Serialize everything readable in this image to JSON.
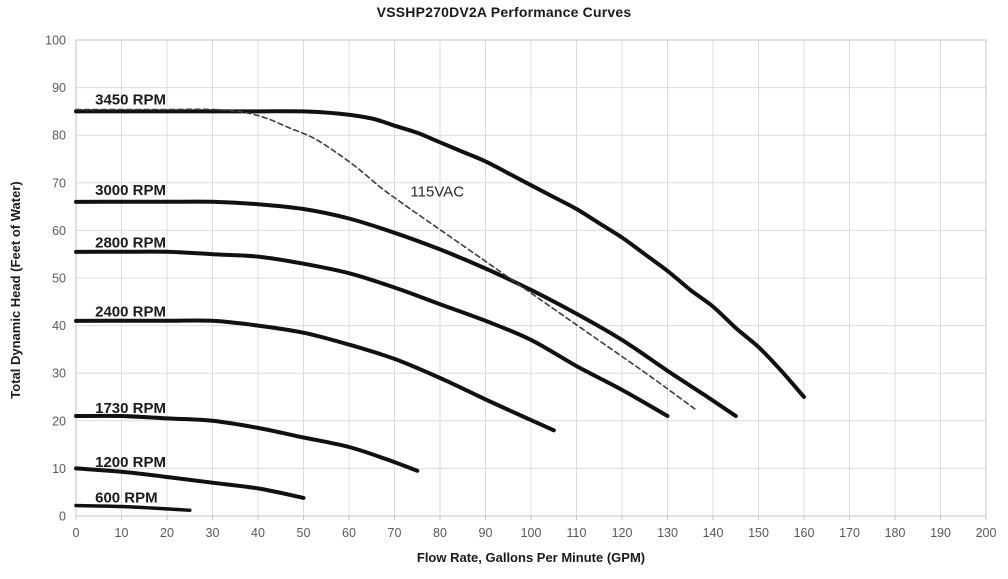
{
  "title": "VSSHP270DV2A Performance Curves",
  "colors": {
    "background": "#ffffff",
    "curve": "#111111",
    "dashed_curve": "#3d3d3d",
    "gridline": "#dcdcdc",
    "plot_border": "#c3c3c3",
    "tick_label": "#595959",
    "title_text": "#1a1a1a"
  },
  "chart_data": {
    "type": "line",
    "title": "VSSHP270DV2A Performance Curves",
    "xlabel": "Flow Rate, Gallons Per Minute (GPM)",
    "ylabel": "Total Dynamic Head (Feet of Water)",
    "xlim": [
      0,
      200
    ],
    "ylim": [
      0,
      100
    ],
    "xtick_step": 10,
    "ytick_step": 10,
    "grid": true,
    "legend_position": "inline-labels",
    "x_units": "GPM",
    "y_units": "Feet of Water",
    "series": [
      {
        "name": "3450 RPM",
        "line": "solid",
        "width": 4,
        "label_text": "3450 RPM",
        "label_x": 4.2,
        "label_y": 87.5,
        "label_bold": true,
        "points": [
          [
            0,
            85
          ],
          [
            10,
            85
          ],
          [
            20,
            85
          ],
          [
            30,
            85
          ],
          [
            40,
            85
          ],
          [
            50,
            85
          ],
          [
            58,
            84.5
          ],
          [
            65,
            83.5
          ],
          [
            70,
            82
          ],
          [
            75,
            80.5
          ],
          [
            80,
            78.5
          ],
          [
            85,
            76.5
          ],
          [
            90,
            74.5
          ],
          [
            95,
            72
          ],
          [
            100,
            69.5
          ],
          [
            105,
            67
          ],
          [
            110,
            64.5
          ],
          [
            115,
            61.5
          ],
          [
            120,
            58.5
          ],
          [
            125,
            55
          ],
          [
            130,
            51.5
          ],
          [
            135,
            47.5
          ],
          [
            140,
            44
          ],
          [
            145,
            39.5
          ],
          [
            150,
            35.5
          ],
          [
            155,
            30.5
          ],
          [
            160,
            25
          ]
        ]
      },
      {
        "name": "3000 RPM",
        "line": "solid",
        "width": 4,
        "label_text": "3000 RPM",
        "label_x": 4.2,
        "label_y": 68.5,
        "label_bold": true,
        "points": [
          [
            0,
            66
          ],
          [
            10,
            66
          ],
          [
            20,
            66
          ],
          [
            30,
            66
          ],
          [
            40,
            65.5
          ],
          [
            50,
            64.5
          ],
          [
            60,
            62.5
          ],
          [
            70,
            59.5
          ],
          [
            80,
            56
          ],
          [
            90,
            52
          ],
          [
            100,
            47.5
          ],
          [
            110,
            42.5
          ],
          [
            120,
            37
          ],
          [
            130,
            30.5
          ],
          [
            138,
            25.5
          ],
          [
            145,
            21
          ]
        ]
      },
      {
        "name": "2800 RPM",
        "line": "solid",
        "width": 4,
        "label_text": "2800 RPM",
        "label_x": 4.2,
        "label_y": 57.5,
        "label_bold": true,
        "points": [
          [
            0,
            55.5
          ],
          [
            10,
            55.5
          ],
          [
            20,
            55.5
          ],
          [
            30,
            55
          ],
          [
            40,
            54.5
          ],
          [
            50,
            53
          ],
          [
            60,
            51
          ],
          [
            70,
            48
          ],
          [
            80,
            44.5
          ],
          [
            90,
            41
          ],
          [
            100,
            37
          ],
          [
            110,
            31.5
          ],
          [
            120,
            26.5
          ],
          [
            130,
            21
          ]
        ]
      },
      {
        "name": "2400 RPM",
        "line": "solid",
        "width": 4,
        "label_text": "2400 RPM",
        "label_x": 4.2,
        "label_y": 43,
        "label_bold": true,
        "points": [
          [
            0,
            41
          ],
          [
            10,
            41
          ],
          [
            20,
            41
          ],
          [
            30,
            41
          ],
          [
            40,
            40
          ],
          [
            50,
            38.5
          ],
          [
            60,
            36
          ],
          [
            70,
            33
          ],
          [
            80,
            29
          ],
          [
            90,
            24.5
          ],
          [
            98,
            21
          ],
          [
            105,
            18
          ]
        ]
      },
      {
        "name": "1730 RPM",
        "line": "solid",
        "width": 4,
        "label_text": "1730 RPM",
        "label_x": 4.2,
        "label_y": 22.7,
        "label_bold": true,
        "points": [
          [
            0,
            21
          ],
          [
            10,
            21
          ],
          [
            20,
            20.5
          ],
          [
            30,
            20
          ],
          [
            40,
            18.5
          ],
          [
            50,
            16.5
          ],
          [
            60,
            14.5
          ],
          [
            68,
            12
          ],
          [
            75,
            9.5
          ]
        ]
      },
      {
        "name": "1200 RPM",
        "line": "solid",
        "width": 4,
        "label_text": "1200 RPM",
        "label_x": 4.2,
        "label_y": 11.3,
        "label_bold": true,
        "points": [
          [
            0,
            10
          ],
          [
            10,
            9.3
          ],
          [
            20,
            8.2
          ],
          [
            30,
            7
          ],
          [
            40,
            5.8
          ],
          [
            50,
            3.8
          ]
        ]
      },
      {
        "name": "600 RPM",
        "line": "solid",
        "width": 3.5,
        "label_text": "600 RPM",
        "label_x": 4.2,
        "label_y": 3.9,
        "label_bold": true,
        "points": [
          [
            0,
            2.2
          ],
          [
            10,
            2
          ],
          [
            20,
            1.5
          ],
          [
            25,
            1.2
          ]
        ]
      },
      {
        "name": "115VAC",
        "line": "dashed",
        "width": 1.6,
        "label_text": "115VAC",
        "label_x": 73.5,
        "label_y": 68.2,
        "label_bold": false,
        "points": [
          [
            0,
            85.4
          ],
          [
            10,
            85.4
          ],
          [
            20,
            85.4
          ],
          [
            30,
            85.4
          ],
          [
            37,
            84.8
          ],
          [
            42,
            83.5
          ],
          [
            47,
            81.5
          ],
          [
            52,
            79.5
          ],
          [
            57,
            76.5
          ],
          [
            62,
            73
          ],
          [
            67,
            69
          ],
          [
            72,
            65.5
          ],
          [
            78,
            61.5
          ],
          [
            84,
            57.5
          ],
          [
            90,
            53.5
          ],
          [
            96,
            49.5
          ],
          [
            102,
            45.5
          ],
          [
            108,
            41.5
          ],
          [
            114,
            37.5
          ],
          [
            120,
            33.5
          ],
          [
            126,
            29.5
          ],
          [
            131,
            26
          ],
          [
            136,
            22.5
          ]
        ]
      }
    ]
  }
}
